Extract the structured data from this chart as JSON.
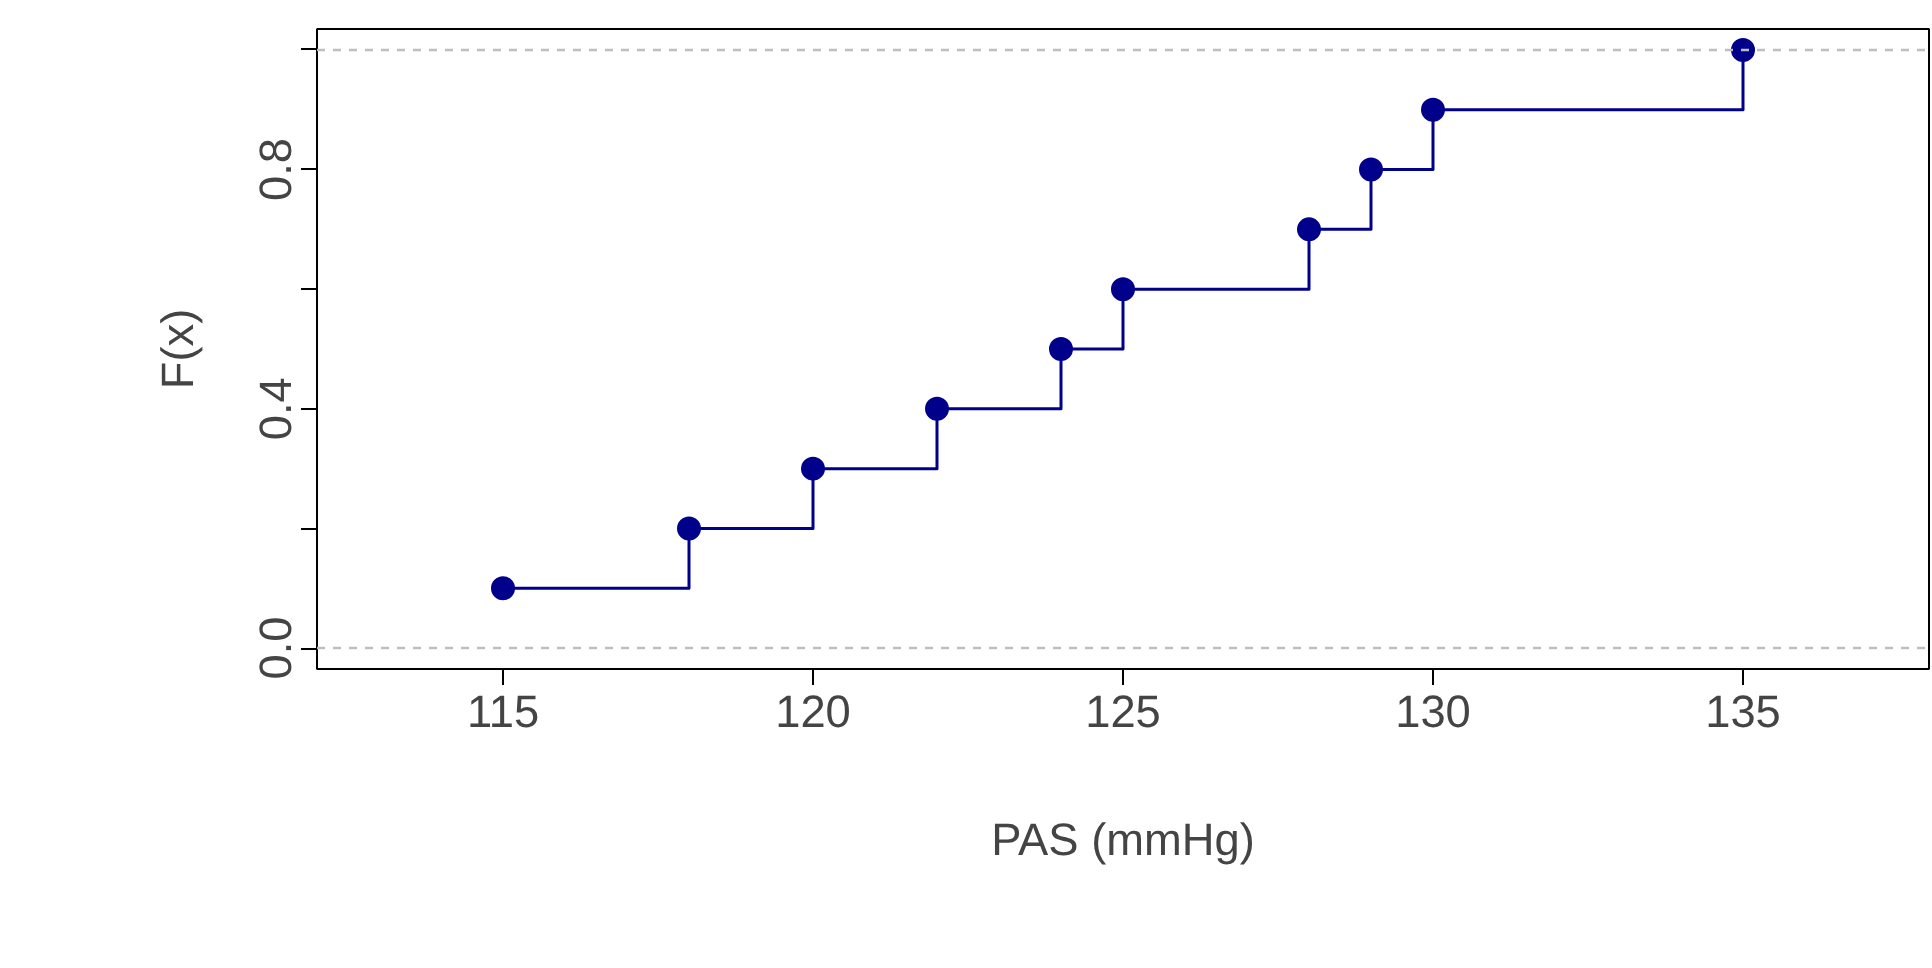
{
  "chart_data": {
    "type": "step",
    "xlabel": "PAS (mmHg)",
    "ylabel": "F(x)",
    "x": [
      115,
      118,
      120,
      122,
      124,
      125,
      128,
      129,
      130,
      135
    ],
    "series": [
      {
        "color": "#00008b",
        "values": [
          0.1,
          0.2,
          0.3,
          0.4,
          0.5,
          0.6,
          0.7,
          0.8,
          0.9,
          1.0
        ]
      }
    ],
    "marker": "circle",
    "grid": false,
    "xlim": [
      112,
      138
    ],
    "ylim": [
      -0.035,
      1.035
    ],
    "xticks": [
      115,
      120,
      125,
      130,
      135
    ],
    "yticks": [
      {
        "value": 0,
        "label": "0.0"
      },
      {
        "value": 0.2,
        "label": null
      },
      {
        "value": 0.4,
        "label": "0.4"
      },
      {
        "value": 0.6,
        "label": null
      },
      {
        "value": 0.8,
        "label": "0.8"
      },
      {
        "value": 1.0,
        "label": null
      }
    ],
    "ref_lines": [
      {
        "axis": "y",
        "value": 0,
        "color": "#bebebe",
        "line_style": "dashed"
      },
      {
        "axis": "y",
        "value": 1,
        "color": "#bebebe",
        "line_style": "dashed"
      }
    ]
  }
}
